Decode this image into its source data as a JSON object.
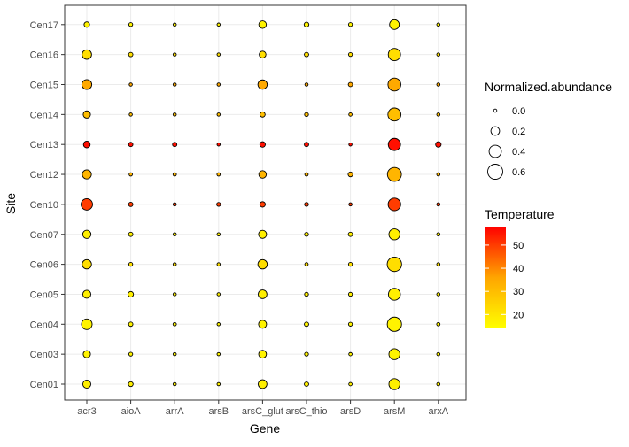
{
  "chart_data": {
    "type": "scatter",
    "subtype": "bubble",
    "xlabel": "Gene",
    "ylabel": "Site",
    "x_categories": [
      "acr3",
      "aioA",
      "arrA",
      "arsB",
      "arsC_glut",
      "arsC_thio",
      "arsD",
      "arsM",
      "arxA"
    ],
    "y_categories": [
      "Cen01",
      "Cen03",
      "Cen04",
      "Cen05",
      "Cen06",
      "Cen07",
      "Cen10",
      "Cen12",
      "Cen13",
      "Cen14",
      "Cen15",
      "Cen16",
      "Cen17"
    ],
    "grid": true,
    "size_legend": {
      "title": "Normalized.abundance",
      "breaks": [
        0.0,
        0.2,
        0.4,
        0.6
      ],
      "labels": [
        "0.0",
        "0.2",
        "0.4",
        "0.6"
      ],
      "range": [
        0,
        0.75
      ]
    },
    "color_legend": {
      "title": "Temperature",
      "breaks": [
        20,
        30,
        40,
        50
      ],
      "labels": [
        "20",
        "30",
        "40",
        "50"
      ],
      "range": [
        14,
        58
      ],
      "low_color": "#ffff00",
      "mid_color": "#ffa500",
      "high_color": "#ff0000"
    },
    "sites": [
      {
        "site": "Cen17",
        "temperature": 17,
        "abundance": [
          0.08,
          0.04,
          0.02,
          0.02,
          0.15,
          0.06,
          0.04,
          0.25,
          0.02
        ]
      },
      {
        "site": "Cen16",
        "temperature": 22,
        "abundance": [
          0.24,
          0.05,
          0.02,
          0.02,
          0.12,
          0.05,
          0.04,
          0.4,
          0.02
        ]
      },
      {
        "site": "Cen15",
        "temperature": 35,
        "abundance": [
          0.26,
          0.02,
          0.02,
          0.02,
          0.23,
          0.02,
          0.05,
          0.44,
          0.02
        ]
      },
      {
        "site": "Cen14",
        "temperature": 30,
        "abundance": [
          0.14,
          0.02,
          0.02,
          0.02,
          0.07,
          0.04,
          0.03,
          0.45,
          0.02
        ]
      },
      {
        "site": "Cen13",
        "temperature": 56,
        "abundance": [
          0.12,
          0.05,
          0.05,
          0.02,
          0.08,
          0.05,
          0.02,
          0.4,
          0.08
        ]
      },
      {
        "site": "Cen12",
        "temperature": 32,
        "abundance": [
          0.22,
          0.03,
          0.03,
          0.03,
          0.15,
          0.03,
          0.06,
          0.52,
          0.02
        ]
      },
      {
        "site": "Cen10",
        "temperature": 50,
        "abundance": [
          0.35,
          0.05,
          0.02,
          0.04,
          0.08,
          0.04,
          0.02,
          0.42,
          0.02
        ]
      },
      {
        "site": "Cen07",
        "temperature": 18,
        "abundance": [
          0.18,
          0.05,
          0.02,
          0.02,
          0.17,
          0.04,
          0.05,
          0.32,
          0.02
        ]
      },
      {
        "site": "Cen06",
        "temperature": 22,
        "abundance": [
          0.23,
          0.04,
          0.02,
          0.02,
          0.23,
          0.03,
          0.04,
          0.55,
          0.02
        ]
      },
      {
        "site": "Cen05",
        "temperature": 18,
        "abundance": [
          0.17,
          0.08,
          0.02,
          0.02,
          0.2,
          0.04,
          0.04,
          0.38,
          0.02
        ]
      },
      {
        "site": "Cen04",
        "temperature": 17,
        "abundance": [
          0.3,
          0.05,
          0.03,
          0.02,
          0.17,
          0.05,
          0.04,
          0.54,
          0.03
        ]
      },
      {
        "site": "Cen03",
        "temperature": 17,
        "abundance": [
          0.14,
          0.04,
          0.02,
          0.02,
          0.16,
          0.04,
          0.03,
          0.32,
          0.02
        ]
      },
      {
        "site": "Cen01",
        "temperature": 18,
        "abundance": [
          0.17,
          0.06,
          0.02,
          0.02,
          0.2,
          0.05,
          0.03,
          0.32,
          0.02
        ]
      }
    ]
  }
}
